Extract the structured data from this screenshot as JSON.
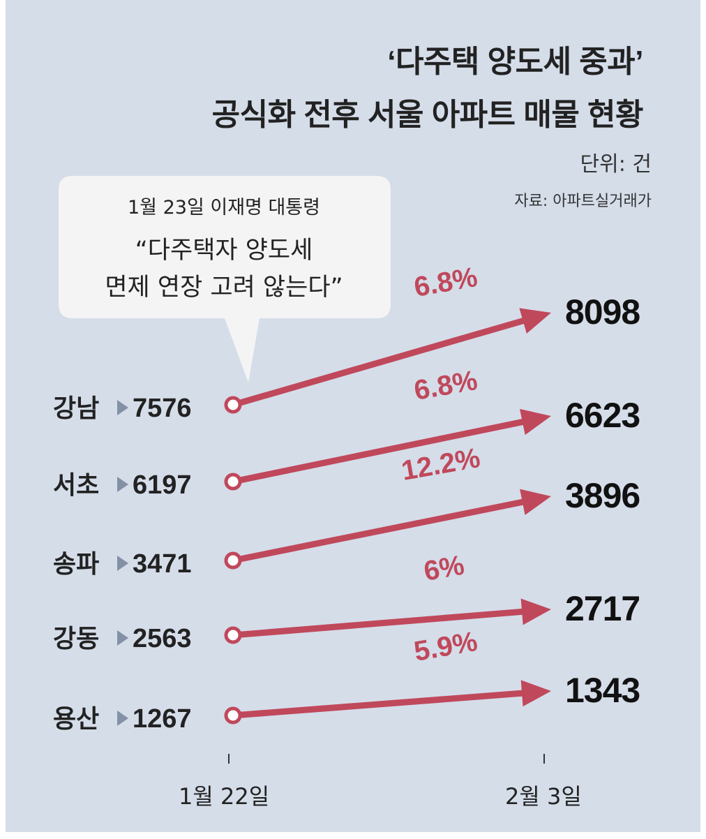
{
  "title_line1": "‘다주택 양도세 중과’",
  "title_line2": "공식화 전후 서울 아파트 매물 현황",
  "unit": "단위: 건",
  "source": "자료: 아파트실거래가",
  "callout": {
    "line1": "1월 23일 이재명 대통령",
    "line2": "“다주택자 양도세",
    "line3": "면제 연장 고려 않는다”"
  },
  "colors": {
    "background": "#d5dde9",
    "arrow": "#c0485b",
    "bubble": "#f4f4f4"
  },
  "chart_data": {
    "type": "line",
    "x": [
      "1월 22일",
      "2월 3일"
    ],
    "series": [
      {
        "name": "강남",
        "values": [
          7576,
          8098
        ],
        "change_label": "6.8%"
      },
      {
        "name": "서초",
        "values": [
          6197,
          6623
        ],
        "change_label": "6.8%"
      },
      {
        "name": "송파",
        "values": [
          3471,
          3896
        ],
        "change_label": "12.2%"
      },
      {
        "name": "강동",
        "values": [
          2563,
          2717
        ],
        "change_label": "6%"
      },
      {
        "name": "용산",
        "values": [
          1267,
          1343
        ],
        "change_label": "5.9%"
      }
    ]
  }
}
